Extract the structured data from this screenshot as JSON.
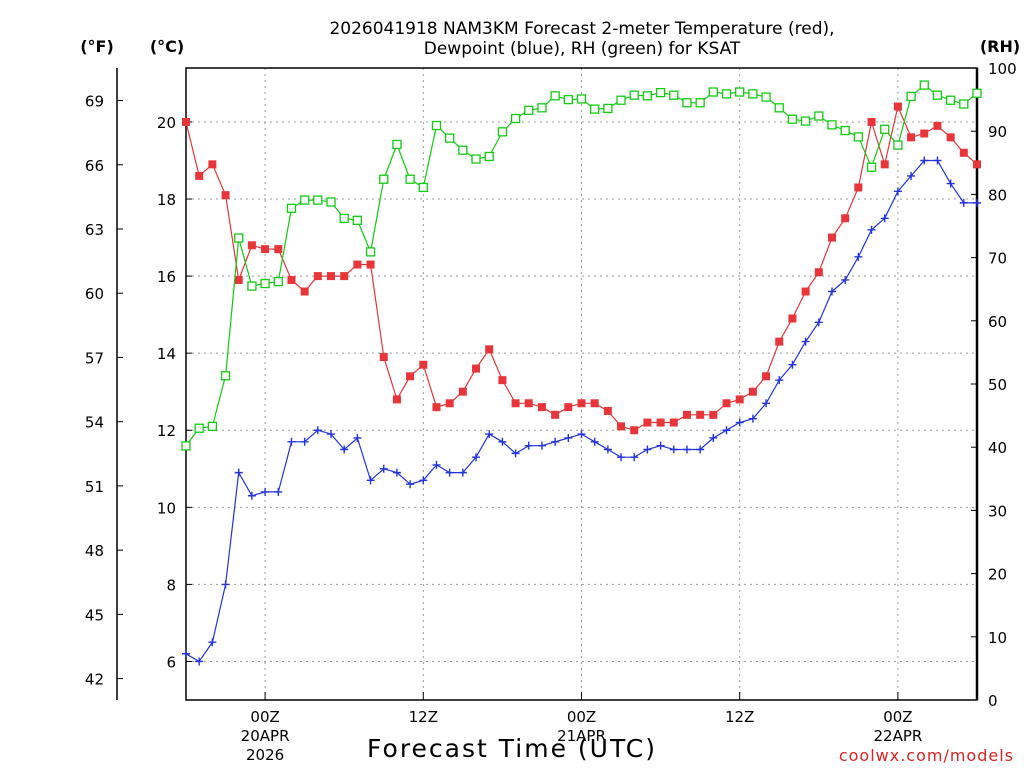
{
  "colors": {
    "temp": "#e8353a",
    "dewpoint": "#2233dd",
    "rh": "#11cc11",
    "grid": "#999999",
    "credit": "#dd2222"
  },
  "chart_data": {
    "type": "line",
    "title": [
      "2026041918 NAM3KM Forecast 2-meter Temperature (red),",
      "Dewpoint (blue), RH (green) for KSAT"
    ],
    "xlabel": "Forecast Time (UTC)",
    "credit": "coolwx.com/models",
    "units": {
      "fahrenheit": "(°F)",
      "celsius": "(°C)",
      "rh": "(RH)"
    },
    "x_hours_since_start": {
      "first": 0,
      "step": 1,
      "count": 61
    },
    "x_ticks": [
      {
        "hour": 6,
        "label": "00Z",
        "date": "20APR",
        "year": "2026"
      },
      {
        "hour": 18,
        "label": "12Z",
        "date": "",
        "year": ""
      },
      {
        "hour": 30,
        "label": "00Z",
        "date": "21APR",
        "year": ""
      },
      {
        "hour": 42,
        "label": "12Z",
        "date": "",
        "year": ""
      },
      {
        "hour": 54,
        "label": "00Z",
        "date": "22APR",
        "year": ""
      }
    ],
    "celsius_axis": {
      "ylim": [
        5.0,
        21.4
      ],
      "ticks": [
        "6",
        "8",
        "10",
        "12",
        "14",
        "16",
        "18",
        "20"
      ]
    },
    "fahrenheit_ticks": [
      "42",
      "45",
      "48",
      "51",
      "54",
      "57",
      "60",
      "63",
      "66",
      "69"
    ],
    "rh_axis": {
      "ylim": [
        0,
        100
      ],
      "ticks": [
        "0",
        "10",
        "20",
        "30",
        "40",
        "50",
        "60",
        "70",
        "80",
        "90",
        "100"
      ]
    },
    "series": [
      {
        "name": "2-meter Temperature",
        "color": "red",
        "unit": "C",
        "values": [
          20.0,
          18.6,
          18.9,
          18.1,
          15.9,
          16.8,
          16.7,
          16.7,
          15.9,
          15.6,
          16.0,
          16.0,
          16.0,
          16.3,
          16.3,
          13.9,
          12.8,
          13.4,
          13.7,
          12.6,
          12.7,
          13.0,
          13.6,
          14.1,
          13.3,
          12.7,
          12.7,
          12.6,
          12.4,
          12.6,
          12.7,
          12.7,
          12.5,
          12.1,
          12.0,
          12.2,
          12.2,
          12.2,
          12.4,
          12.4,
          12.4,
          12.7,
          12.8,
          13.0,
          13.4,
          14.3,
          14.9,
          15.6,
          16.1,
          17.0,
          17.5,
          18.3,
          20.0,
          18.9,
          20.4,
          19.6,
          19.7,
          19.9,
          19.6,
          19.2,
          18.9
        ]
      },
      {
        "name": "Dewpoint",
        "color": "blue",
        "unit": "C",
        "values": [
          6.2,
          6.0,
          6.5,
          8.0,
          10.9,
          10.3,
          10.4,
          10.4,
          11.7,
          11.7,
          12.0,
          11.9,
          11.5,
          11.8,
          10.7,
          11.0,
          10.9,
          10.6,
          10.7,
          11.1,
          10.9,
          10.9,
          11.3,
          11.9,
          11.7,
          11.4,
          11.6,
          11.6,
          11.7,
          11.8,
          11.9,
          11.7,
          11.5,
          11.3,
          11.3,
          11.5,
          11.6,
          11.5,
          11.5,
          11.5,
          11.8,
          12.0,
          12.2,
          12.3,
          12.7,
          13.3,
          13.7,
          14.3,
          14.8,
          15.6,
          15.9,
          16.5,
          17.2,
          17.5,
          18.2,
          18.6,
          19.0,
          19.0,
          18.4,
          17.9,
          17.9
        ]
      },
      {
        "name": "Relative Humidity",
        "color": "green",
        "unit": "%",
        "values": [
          40.2,
          43.0,
          43.3,
          51.3,
          73.1,
          65.5,
          65.9,
          66.2,
          77.8,
          79.1,
          79.1,
          78.8,
          76.2,
          75.9,
          70.9,
          82.4,
          87.9,
          82.4,
          81.1,
          90.9,
          88.9,
          87.0,
          85.6,
          86.0,
          89.9,
          92.0,
          93.3,
          93.7,
          95.6,
          95.0,
          95.1,
          93.5,
          93.6,
          94.9,
          95.7,
          95.6,
          96.1,
          95.7,
          94.5,
          94.5,
          96.2,
          95.9,
          96.2,
          95.9,
          95.4,
          93.7,
          91.9,
          91.6,
          92.4,
          91.0,
          90.1,
          89.1,
          84.3,
          90.3,
          87.8,
          95.5,
          97.3,
          95.7,
          94.9,
          94.3,
          96.0
        ]
      }
    ]
  }
}
